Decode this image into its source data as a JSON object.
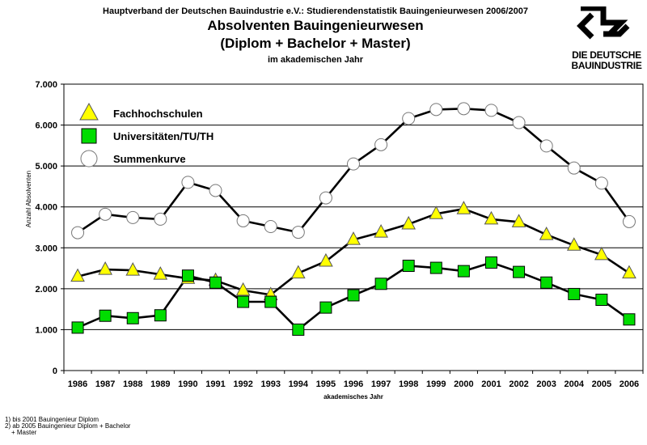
{
  "header": {
    "top_line": "Hauptverband der Deutschen Bauindustrie e.V.: Studierendenstatistik Bauingenieurwesen 2006/2007",
    "title": "Absolventen Bauingenieurwesen",
    "subtitle": "(Diplom + Bachelor + Master)",
    "note": "im akademischen Jahr"
  },
  "logo": {
    "line1": "DIE DEUTSCHE",
    "line2": "BAUINDUSTRIE",
    "icon": "bauindustrie-logo-chevron"
  },
  "footnotes": [
    "1) bis 2001 Bauingenieur Diplom",
    "2) ab 2005 Bauingenieur Diplom + Bachelor",
    "+ Master"
  ],
  "colors": {
    "triangle": "#ffff00",
    "square": "#00dd00",
    "line": "#000000",
    "grid": "#000000"
  },
  "chart_data": {
    "type": "line",
    "xlabel": "akademisches Jahr",
    "ylabel": "Anzahl Absolventen",
    "ylim": [
      0,
      7000
    ],
    "yticks": [
      0,
      1000,
      2000,
      3000,
      4000,
      5000,
      6000,
      7000
    ],
    "ytick_labels": [
      "0",
      "1.000",
      "2.000",
      "3.000",
      "4.000",
      "5.000",
      "6.000",
      "7.000"
    ],
    "grid": "horizontal",
    "legend_position": "top-left",
    "categories": [
      "1986",
      "1987",
      "1988",
      "1989",
      "1990",
      "1991",
      "1992",
      "1993",
      "1994",
      "1995",
      "1996",
      "1997",
      "1998",
      "1999",
      "2000",
      "2001",
      "2002",
      "2003",
      "2004",
      "2005",
      "2006"
    ],
    "series": [
      {
        "name": "Fachhochschulen",
        "marker": "triangle",
        "values": [
          2300,
          2470,
          2450,
          2350,
          2250,
          2200,
          1960,
          1850,
          2380,
          2670,
          3200,
          3380,
          3580,
          3830,
          3950,
          3700,
          3630,
          3320,
          3060,
          2830,
          2380
        ]
      },
      {
        "name": "Universitäten/TU/TH",
        "marker": "square",
        "values": [
          1050,
          1340,
          1280,
          1350,
          2320,
          2150,
          1680,
          1680,
          1000,
          1540,
          1840,
          2120,
          2560,
          2510,
          2430,
          2640,
          2410,
          2150,
          1870,
          1730,
          1250
        ]
      },
      {
        "name": "Summenkurve",
        "marker": "circle",
        "values": [
          3370,
          3820,
          3740,
          3700,
          4600,
          4400,
          3660,
          3520,
          3380,
          4220,
          5050,
          5520,
          6160,
          6380,
          6400,
          6360,
          6060,
          5490,
          4950,
          4580,
          3640
        ]
      }
    ]
  }
}
